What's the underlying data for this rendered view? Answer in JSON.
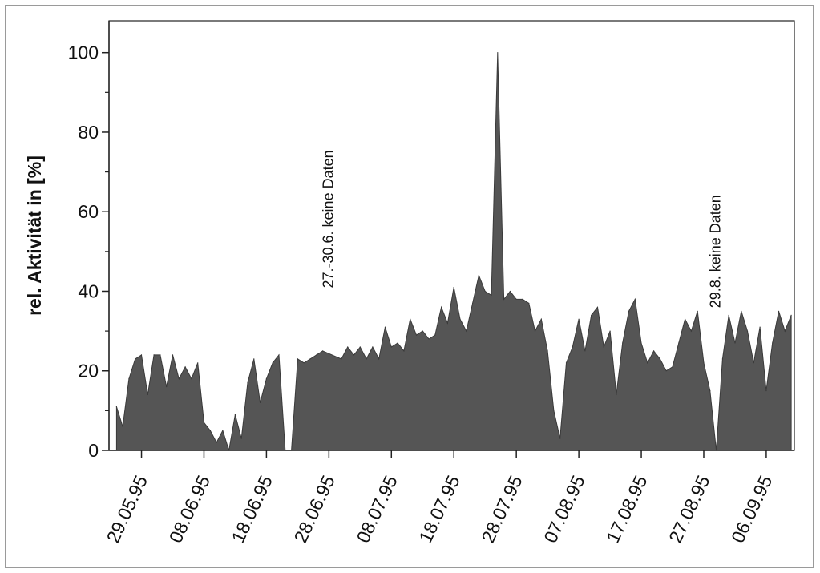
{
  "chart_data": {
    "type": "area",
    "title": "",
    "xlabel": "",
    "ylabel": "rel. Aktivität in [%]",
    "ylim": [
      0,
      108
    ],
    "yticks": [
      "0",
      "20",
      "40",
      "60",
      "80",
      "100"
    ],
    "x_tick_labels": [
      "29.05.95",
      "08.06.95",
      "18.06.95",
      "28.06.95",
      "08.07.95",
      "18.07.95",
      "28.07.95",
      "07.08.95",
      "17.08.95",
      "27.08.95",
      "06.09.95"
    ],
    "grid": false,
    "colors": {
      "fill": "#555555",
      "stroke": "#3a3a3a",
      "axis": "#222222"
    },
    "annotations": [
      {
        "text": "27.-30.6. keine Daten",
        "x": "28.06.95",
        "y": 40
      },
      {
        "text": "29.8. keine Daten",
        "x": "29.08.95",
        "y": 35
      }
    ],
    "series": [
      {
        "x": [
          "25.05.95",
          "26.05.95",
          "27.05.95",
          "28.05.95",
          "29.05.95",
          "30.05.95",
          "31.05.95",
          "01.06.95",
          "02.06.95",
          "03.06.95",
          "04.06.95",
          "05.06.95",
          "06.06.95",
          "07.06.95",
          "08.06.95",
          "09.06.95",
          "10.06.95",
          "11.06.95",
          "12.06.95",
          "13.06.95",
          "14.06.95",
          "15.06.95",
          "16.06.95",
          "17.06.95",
          "18.06.95",
          "19.06.95",
          "20.06.95",
          "21.06.95",
          "22.06.95",
          "23.06.95",
          "24.06.95",
          "25.06.95",
          "26.06.95",
          "27.06.95",
          "30.06.95",
          "01.07.95",
          "02.07.95",
          "03.07.95",
          "04.07.95",
          "05.07.95",
          "06.07.95",
          "07.07.95",
          "08.07.95",
          "09.07.95",
          "10.07.95",
          "11.07.95",
          "12.07.95",
          "13.07.95",
          "14.07.95",
          "15.07.95",
          "16.07.95",
          "17.07.95",
          "18.07.95",
          "19.07.95",
          "20.07.95",
          "21.07.95",
          "22.07.95",
          "23.07.95",
          "24.07.95",
          "25.07.95",
          "26.07.95",
          "27.07.95",
          "28.07.95",
          "29.07.95",
          "30.07.95",
          "31.07.95",
          "01.08.95",
          "02.08.95",
          "03.08.95",
          "04.08.95",
          "05.08.95",
          "06.08.95",
          "07.08.95",
          "08.08.95",
          "09.08.95",
          "10.08.95",
          "11.08.95",
          "12.08.95",
          "13.08.95",
          "14.08.95",
          "15.08.95",
          "16.08.95",
          "17.08.95",
          "18.08.95",
          "19.08.95",
          "20.08.95",
          "21.08.95",
          "22.08.95",
          "23.08.95",
          "24.08.95",
          "25.08.95",
          "26.08.95",
          "27.08.95",
          "28.08.95",
          "29.08.95",
          "30.08.95",
          "31.08.95",
          "01.09.95",
          "02.09.95",
          "03.09.95",
          "04.09.95",
          "05.09.95",
          "06.09.95",
          "07.09.95",
          "08.09.95",
          "09.09.95",
          "10.09.95"
        ],
        "values": [
          11,
          6,
          18,
          23,
          24,
          14,
          24,
          24,
          16,
          24,
          18,
          21,
          18,
          22,
          7,
          5,
          2,
          5,
          0,
          9,
          3,
          17,
          23,
          12,
          18,
          22,
          24,
          0,
          0,
          23,
          22,
          23,
          24,
          25,
          23,
          26,
          24,
          26,
          23,
          26,
          23,
          31,
          26,
          27,
          25,
          33,
          29,
          30,
          28,
          29,
          36,
          32,
          41,
          33,
          30,
          37,
          44,
          40,
          39,
          100,
          38,
          40,
          38,
          38,
          37,
          30,
          33,
          25,
          10,
          3,
          22,
          26,
          33,
          25,
          34,
          36,
          26,
          30,
          14,
          27,
          35,
          38,
          27,
          22,
          25,
          23,
          20,
          21,
          27,
          33,
          30,
          35,
          22,
          15,
          0,
          23,
          34,
          27,
          35,
          30,
          22,
          31,
          15,
          27,
          35,
          30,
          34
        ]
      }
    ]
  }
}
